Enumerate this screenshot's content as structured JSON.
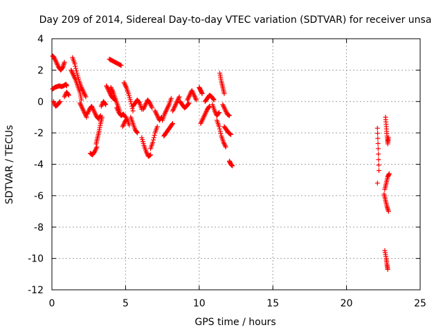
{
  "chart_data": {
    "type": "scatter",
    "title": "Day 209 of 2014, Sidereal Day-to-day VTEC variation (SDTVAR) for receiver unsa",
    "xlabel": "GPS time / hours",
    "ylabel": "SDTVAR / TECUs",
    "xlim": [
      0,
      25
    ],
    "ylim": [
      -12,
      4
    ],
    "xticks": [
      0,
      5,
      10,
      15,
      20,
      25
    ],
    "yticks": [
      4,
      2,
      0,
      -2,
      -4,
      -6,
      -8,
      -10,
      -12
    ],
    "grid": true,
    "marker": "+",
    "marker_color": "#ff0000",
    "segments": [
      {
        "x": [
          0.05,
          0.15,
          0.3,
          0.45,
          0.6,
          0.75,
          0.85
        ],
        "y": [
          2.9,
          2.8,
          2.5,
          2.2,
          2.0,
          2.2,
          2.5
        ]
      },
      {
        "x": [
          0.05,
          0.2,
          0.35,
          0.5,
          0.65,
          0.8,
          0.95,
          1.0
        ],
        "y": [
          0.8,
          0.9,
          0.95,
          1.0,
          0.95,
          1.0,
          1.1,
          1.0
        ]
      },
      {
        "x": [
          0.1,
          0.25,
          0.4,
          0.55
        ],
        "y": [
          0.0,
          -0.3,
          -0.2,
          0.0
        ]
      },
      {
        "x": [
          0.85,
          1.0,
          1.15
        ],
        "y": [
          0.3,
          0.6,
          0.4
        ]
      },
      {
        "x": [
          1.3,
          1.45,
          1.6,
          1.75,
          1.9,
          2.0
        ],
        "y": [
          2.0,
          1.7,
          1.4,
          1.0,
          0.6,
          0.1
        ]
      },
      {
        "x": [
          1.4,
          1.55,
          1.7,
          1.85,
          2.0,
          2.15,
          2.3
        ],
        "y": [
          2.8,
          2.4,
          1.8,
          1.3,
          0.9,
          0.6,
          0.3
        ]
      },
      {
        "x": [
          1.9,
          2.05,
          2.2,
          2.35
        ],
        "y": [
          -0.1,
          -0.4,
          -0.7,
          -1.0
        ]
      },
      {
        "x": [
          2.4,
          2.55,
          2.7,
          2.85,
          3.0,
          3.15,
          3.3
        ],
        "y": [
          -0.8,
          -0.5,
          -0.3,
          -0.6,
          -0.9,
          -1.1,
          -0.9
        ]
      },
      {
        "x": [
          2.6,
          2.75,
          2.9,
          3.05
        ],
        "y": [
          -3.3,
          -3.4,
          -3.2,
          -2.9
        ]
      },
      {
        "x": [
          3.0,
          3.1,
          3.2,
          3.3,
          3.4
        ],
        "y": [
          -2.7,
          -2.3,
          -1.9,
          -1.4,
          -1.0
        ]
      },
      {
        "x": [
          3.35,
          3.5,
          3.65
        ],
        "y": [
          -0.3,
          0.0,
          -0.2
        ]
      },
      {
        "x": [
          3.7,
          3.85,
          4.0,
          4.15,
          4.3
        ],
        "y": [
          1.0,
          0.7,
          0.4,
          0.2,
          0.1
        ]
      },
      {
        "x": [
          3.9,
          4.1,
          4.3,
          4.5,
          4.7
        ],
        "y": [
          2.7,
          2.6,
          2.5,
          2.4,
          2.3
        ]
      },
      {
        "x": [
          4.0,
          4.15,
          4.3,
          4.45,
          4.6
        ],
        "y": [
          0.9,
          0.6,
          0.2,
          -0.2,
          -0.6
        ]
      },
      {
        "x": [
          4.4,
          4.55,
          4.7,
          4.85,
          5.0
        ],
        "y": [
          -0.4,
          -0.7,
          -0.9,
          -0.8,
          -1.0
        ]
      },
      {
        "x": [
          4.8,
          4.95,
          5.1,
          5.25
        ],
        "y": [
          -1.6,
          -1.3,
          -1.1,
          -1.5
        ]
      },
      {
        "x": [
          4.9,
          5.05,
          5.2,
          5.35,
          5.5
        ],
        "y": [
          1.2,
          0.9,
          0.5,
          0.0,
          -0.6
        ]
      },
      {
        "x": [
          5.35,
          5.5,
          5.65,
          5.8
        ],
        "y": [
          -1.0,
          -1.4,
          -1.8,
          -2.0
        ]
      },
      {
        "x": [
          5.5,
          5.65,
          5.8,
          5.95,
          6.1
        ],
        "y": [
          -0.3,
          -0.1,
          0.1,
          -0.1,
          -0.5
        ]
      },
      {
        "x": [
          6.1,
          6.25,
          6.4,
          6.55,
          6.7
        ],
        "y": [
          -2.3,
          -2.8,
          -3.2,
          -3.5,
          -3.4
        ]
      },
      {
        "x": [
          6.2,
          6.35,
          6.5,
          6.65,
          6.8
        ],
        "y": [
          -0.5,
          -0.2,
          0.1,
          -0.1,
          -0.4
        ]
      },
      {
        "x": [
          6.7,
          6.85,
          7.0,
          7.15
        ],
        "y": [
          -3.0,
          -2.6,
          -2.0,
          -1.6
        ]
      },
      {
        "x": [
          7.0,
          7.15,
          7.3,
          7.45
        ],
        "y": [
          -0.6,
          -0.9,
          -1.2,
          -1.0
        ]
      },
      {
        "x": [
          7.5,
          7.65,
          7.8,
          7.95,
          8.1
        ],
        "y": [
          -1.2,
          -0.8,
          -0.5,
          -0.2,
          0.2
        ]
      },
      {
        "x": [
          7.6,
          7.75,
          7.9,
          8.05,
          8.2
        ],
        "y": [
          -2.2,
          -2.0,
          -1.8,
          -1.6,
          -1.4
        ]
      },
      {
        "x": [
          8.2,
          8.35,
          8.5,
          8.65
        ],
        "y": [
          -0.6,
          -0.3,
          0.0,
          0.3
        ]
      },
      {
        "x": [
          8.7,
          8.85,
          9.0,
          9.15,
          9.3
        ],
        "y": [
          0.0,
          -0.2,
          -0.4,
          -0.3,
          -0.1
        ]
      },
      {
        "x": [
          9.2,
          9.35,
          9.5,
          9.65,
          9.8
        ],
        "y": [
          0.1,
          0.4,
          0.7,
          0.4,
          0.1
        ]
      },
      {
        "x": [
          10.0,
          10.1,
          10.2
        ],
        "y": [
          0.9,
          0.7,
          0.5
        ]
      },
      {
        "x": [
          10.1,
          10.25,
          10.4,
          10.55,
          10.7
        ],
        "y": [
          -1.4,
          -1.1,
          -0.8,
          -0.5,
          -0.3
        ]
      },
      {
        "x": [
          10.4,
          10.55,
          10.7,
          10.85,
          11.0
        ],
        "y": [
          0.0,
          0.2,
          0.4,
          0.3,
          0.1
        ]
      },
      {
        "x": [
          10.9,
          11.05,
          11.2,
          11.35
        ],
        "y": [
          -0.2,
          -0.6,
          -0.9,
          -0.7
        ]
      },
      {
        "x": [
          11.2,
          11.35,
          11.5,
          11.65,
          11.8
        ],
        "y": [
          -1.2,
          -1.6,
          -2.2,
          -2.6,
          -2.9
        ]
      },
      {
        "x": [
          11.4,
          11.5,
          11.6,
          11.7
        ],
        "y": [
          1.8,
          1.3,
          0.9,
          0.5
        ]
      },
      {
        "x": [
          11.6,
          11.75,
          11.9,
          12.05
        ],
        "y": [
          -0.2,
          -0.5,
          -0.8,
          -0.9
        ]
      },
      {
        "x": [
          11.7,
          11.85,
          12.0,
          12.15
        ],
        "y": [
          -1.6,
          -1.8,
          -2.0,
          -2.1
        ]
      },
      {
        "x": [
          12.05,
          12.15,
          12.25
        ],
        "y": [
          -3.8,
          -4.0,
          -4.1
        ]
      },
      {
        "x": [
          22.1,
          22.15,
          22.2
        ],
        "y": [
          -1.7,
          -3.0,
          -4.4
        ]
      },
      {
        "x": [
          22.1
        ],
        "y": [
          -5.2
        ]
      },
      {
        "x": [
          22.65,
          22.7,
          22.75,
          22.8,
          22.85
        ],
        "y": [
          -1.0,
          -1.6,
          -2.2,
          -2.7,
          -2.3
        ]
      },
      {
        "x": [
          22.6,
          22.7,
          22.8,
          22.9
        ],
        "y": [
          -5.6,
          -5.2,
          -4.8,
          -4.6
        ]
      },
      {
        "x": [
          22.55,
          22.65,
          22.75,
          22.85
        ],
        "y": [
          -5.9,
          -6.3,
          -6.7,
          -7.0
        ]
      },
      {
        "x": [
          22.6,
          22.7,
          22.75,
          22.8
        ],
        "y": [
          -9.5,
          -10.0,
          -10.4,
          -10.7
        ]
      }
    ]
  }
}
